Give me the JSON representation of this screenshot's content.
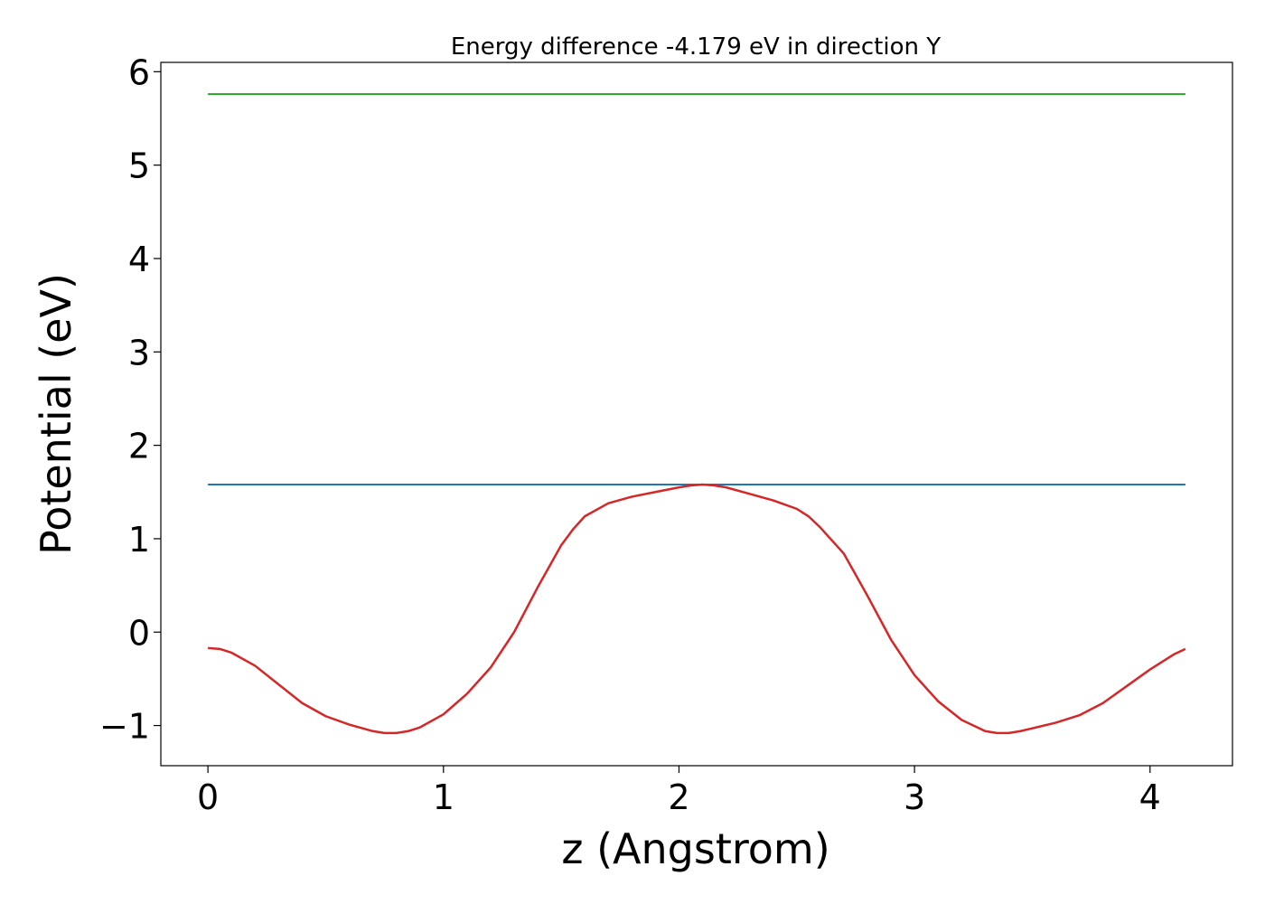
{
  "chart_data": {
    "type": "line",
    "title": "Energy difference -4.179 eV in direction Y",
    "xlabel": "z (Angstrom)",
    "ylabel": "Potential (eV)",
    "xlim": [
      -0.2,
      4.35
    ],
    "ylim": [
      -1.43,
      6.1
    ],
    "xticks": [
      0,
      1,
      2,
      3,
      4
    ],
    "xtick_labels": [
      "0",
      "1",
      "2",
      "3",
      "4"
    ],
    "yticks": [
      -1,
      0,
      1,
      2,
      3,
      4,
      5,
      6
    ],
    "ytick_labels": [
      "−1",
      "0",
      "1",
      "2",
      "3",
      "4",
      "5",
      "6"
    ],
    "grid": false,
    "series": [
      {
        "color": "#2ca02c",
        "x": [
          0,
          4.15
        ],
        "y": [
          5.76,
          5.76
        ]
      },
      {
        "color": "#1f77b4",
        "x": [
          0,
          4.15
        ],
        "y": [
          1.58,
          1.58
        ]
      },
      {
        "color": "#d62728",
        "x": [
          0,
          0.05,
          0.1,
          0.2,
          0.3,
          0.4,
          0.5,
          0.6,
          0.7,
          0.75,
          0.8,
          0.85,
          0.9,
          1.0,
          1.1,
          1.2,
          1.3,
          1.4,
          1.5,
          1.55,
          1.6,
          1.7,
          1.8,
          1.9,
          2.0,
          2.05,
          2.1,
          2.15,
          2.2,
          2.3,
          2.4,
          2.5,
          2.55,
          2.6,
          2.7,
          2.8,
          2.9,
          3.0,
          3.1,
          3.2,
          3.3,
          3.35,
          3.4,
          3.45,
          3.5,
          3.6,
          3.7,
          3.8,
          3.9,
          4.0,
          4.1,
          4.15
        ],
        "y": [
          -0.17,
          -0.18,
          -0.22,
          -0.36,
          -0.56,
          -0.76,
          -0.9,
          -0.99,
          -1.06,
          -1.08,
          -1.08,
          -1.06,
          -1.02,
          -0.88,
          -0.66,
          -0.38,
          0.0,
          0.48,
          0.93,
          1.1,
          1.24,
          1.38,
          1.45,
          1.5,
          1.55,
          1.57,
          1.58,
          1.57,
          1.55,
          1.48,
          1.41,
          1.32,
          1.24,
          1.12,
          0.84,
          0.39,
          -0.08,
          -0.46,
          -0.74,
          -0.94,
          -1.06,
          -1.08,
          -1.08,
          -1.06,
          -1.03,
          -0.97,
          -0.89,
          -0.76,
          -0.58,
          -0.4,
          -0.24,
          -0.18
        ]
      }
    ]
  }
}
